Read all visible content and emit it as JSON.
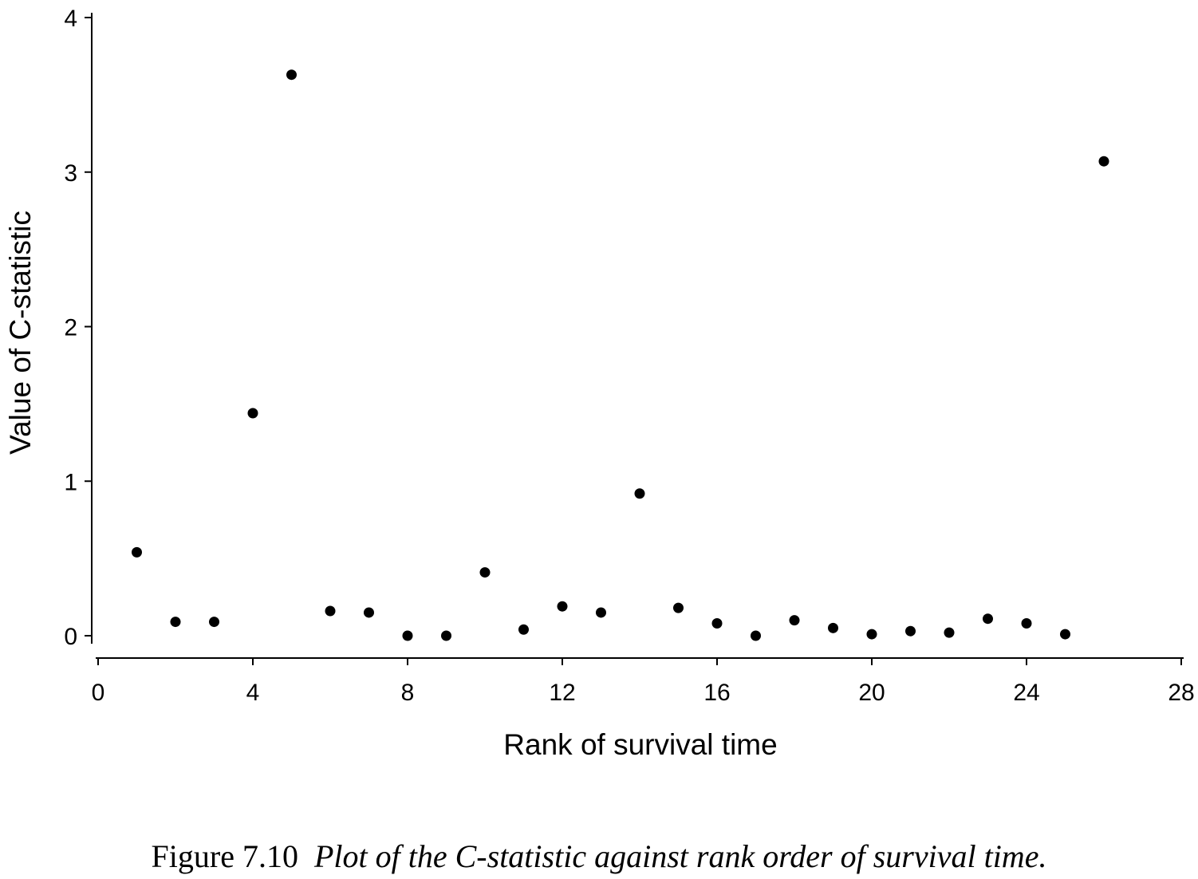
{
  "chart_data": {
    "type": "scatter",
    "title": "",
    "xlabel": "Rank of survival time",
    "ylabel": "Value of C-statistic",
    "xlim": [
      0,
      28
    ],
    "ylim": [
      0,
      4
    ],
    "xticks": [
      "0",
      "4",
      "8",
      "12",
      "16",
      "20",
      "24",
      "28"
    ],
    "yticks": [
      "0",
      "1",
      "2",
      "3",
      "4"
    ],
    "grid": false,
    "legend": "none",
    "marker_color": "#000000",
    "x": [
      1,
      2,
      3,
      4,
      5,
      6,
      7,
      8,
      9,
      10,
      11,
      12,
      13,
      14,
      15,
      16,
      17,
      18,
      19,
      20,
      21,
      22,
      23,
      24,
      25,
      26
    ],
    "y": [
      0.54,
      0.09,
      0.09,
      1.44,
      3.63,
      0.16,
      0.15,
      0.0,
      0.0,
      0.41,
      0.04,
      0.19,
      0.15,
      0.92,
      0.18,
      0.08,
      0.0,
      0.1,
      0.05,
      0.01,
      0.03,
      0.02,
      0.11,
      0.08,
      0.01,
      3.07
    ]
  },
  "caption": {
    "label": "Figure 7.10",
    "text": "Plot of the C-statistic against rank order of survival time."
  }
}
